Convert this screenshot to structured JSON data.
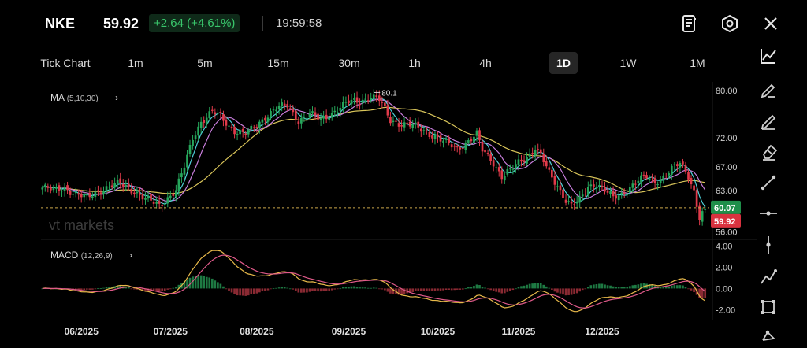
{
  "header": {
    "symbol": "NKE",
    "price": "59.92",
    "change": "+2.64 (+4.61%)",
    "time": "19:59:58",
    "icons": [
      "notes-icon",
      "settings-hexagon-icon",
      "close-icon"
    ]
  },
  "timeframes": [
    "Tick Chart",
    "1m",
    "5m",
    "15m",
    "30m",
    "1h",
    "4h",
    "1D",
    "1W",
    "1M"
  ],
  "active_timeframe": "1D",
  "tools": [
    "trend-chart-icon",
    "pen-icon",
    "brush-icon",
    "eraser-icon",
    "line-tool-icon",
    "horizontal-line-icon",
    "vertical-line-icon",
    "polyline-icon",
    "rectangle-icon",
    "node-tool-icon"
  ],
  "indicators": {
    "ma": {
      "label": "MA",
      "params": "(5,10,30)"
    },
    "macd": {
      "label": "MACD",
      "params": "(12,26,9)"
    }
  },
  "watermark": "vt markets",
  "colors": {
    "up": "#26a65b",
    "down": "#e03a4a",
    "ma5": "#4fd1d9",
    "ma10": "#c77ddb",
    "ma30": "#d9c55a"
  },
  "chart_data": [
    {
      "type": "candlestick",
      "x_labels": [
        "06/2025",
        "07/2025",
        "08/2025",
        "09/2025",
        "10/2025",
        "11/2025",
        "12/2025"
      ],
      "y_ticks": [
        "80.00",
        "72.00",
        "67.00",
        "63.00",
        "56.00"
      ],
      "ylim": [
        55.5,
        81.5
      ],
      "high_annotation": "80.1",
      "price_labels": {
        "ref": "60.07",
        "last": "59.92"
      },
      "ohlc_anchor_closes": [
        [
          0,
          63.5
        ],
        [
          4,
          63.0
        ],
        [
          8,
          63.6
        ],
        [
          12,
          62.3
        ],
        [
          16,
          61.7
        ],
        [
          20,
          63.0
        ],
        [
          24,
          63.6
        ],
        [
          28,
          64.2
        ],
        [
          33,
          63.0
        ],
        [
          37,
          61.5
        ],
        [
          42,
          60.5
        ],
        [
          45,
          61.8
        ],
        [
          48,
          63.0
        ],
        [
          51,
          67.0
        ],
        [
          54,
          72.0
        ],
        [
          57,
          74.8
        ],
        [
          61,
          76.3
        ],
        [
          64,
          75.6
        ],
        [
          67,
          74.0
        ],
        [
          70,
          73.0
        ],
        [
          73,
          72.6
        ],
        [
          76,
          73.6
        ],
        [
          80,
          75.6
        ],
        [
          84,
          77.0
        ],
        [
          88,
          77.4
        ],
        [
          92,
          75.0
        ],
        [
          96,
          76.0
        ],
        [
          100,
          75.0
        ],
        [
          105,
          76.6
        ],
        [
          110,
          78.0
        ],
        [
          114,
          78.3
        ],
        [
          118,
          79.0
        ],
        [
          121,
          78.4
        ],
        [
          125,
          75.0
        ],
        [
          129,
          74.4
        ],
        [
          133,
          74.0
        ],
        [
          137,
          73.2
        ],
        [
          141,
          72.3
        ],
        [
          145,
          71.0
        ],
        [
          149,
          70.2
        ],
        [
          153,
          71.5
        ],
        [
          156,
          72.5
        ],
        [
          158,
          69.8
        ],
        [
          162,
          67.8
        ],
        [
          165,
          65.5
        ],
        [
          168,
          66.3
        ],
        [
          171,
          67.7
        ],
        [
          174,
          68.8
        ],
        [
          177,
          70.3
        ],
        [
          179,
          69.0
        ],
        [
          182,
          65.8
        ],
        [
          185,
          63.8
        ],
        [
          188,
          61.5
        ],
        [
          190,
          60.5
        ],
        [
          193,
          61.2
        ],
        [
          196,
          63.6
        ],
        [
          199,
          64.3
        ],
        [
          202,
          63.1
        ],
        [
          205,
          61.6
        ],
        [
          208,
          62.3
        ],
        [
          211,
          63.7
        ],
        [
          214,
          64.8
        ],
        [
          217,
          65.2
        ],
        [
          220,
          64.4
        ],
        [
          223,
          65.5
        ],
        [
          226,
          66.7
        ],
        [
          229,
          67.5
        ],
        [
          232,
          65.5
        ],
        [
          234,
          63.0
        ],
        [
          236,
          58.5
        ],
        [
          238,
          59.92
        ]
      ],
      "macd_ylim": [
        -2.8,
        4.5
      ],
      "macd_ticks": [
        "4.00",
        "2.00",
        "0.00",
        "-2.00"
      ]
    }
  ]
}
